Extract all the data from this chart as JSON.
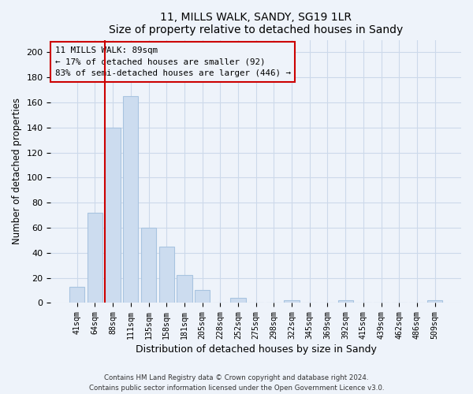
{
  "title": "11, MILLS WALK, SANDY, SG19 1LR",
  "subtitle": "Size of property relative to detached houses in Sandy",
  "xlabel": "Distribution of detached houses by size in Sandy",
  "ylabel": "Number of detached properties",
  "bar_color": "#ccdcef",
  "bar_edge_color": "#a8c4e0",
  "categories": [
    "41sqm",
    "64sqm",
    "88sqm",
    "111sqm",
    "135sqm",
    "158sqm",
    "181sqm",
    "205sqm",
    "228sqm",
    "252sqm",
    "275sqm",
    "298sqm",
    "322sqm",
    "345sqm",
    "369sqm",
    "392sqm",
    "415sqm",
    "439sqm",
    "462sqm",
    "486sqm",
    "509sqm"
  ],
  "values": [
    13,
    72,
    140,
    165,
    60,
    45,
    22,
    10,
    0,
    4,
    0,
    0,
    2,
    0,
    0,
    2,
    0,
    0,
    0,
    0,
    2
  ],
  "annotation_title": "11 MILLS WALK: 89sqm",
  "annotation_line1": "← 17% of detached houses are smaller (92)",
  "annotation_line2": "83% of semi-detached houses are larger (446) →",
  "footer1": "Contains HM Land Registry data © Crown copyright and database right 2024.",
  "footer2": "Contains public sector information licensed under the Open Government Licence v3.0.",
  "ylim": [
    0,
    210
  ],
  "yticks": [
    0,
    20,
    40,
    60,
    80,
    100,
    120,
    140,
    160,
    180,
    200
  ],
  "red_line_color": "#cc0000",
  "annotation_box_edge": "#cc0000",
  "grid_color": "#ccd9ea",
  "background_color": "#eef3fa",
  "prop_line_index": 2.5
}
